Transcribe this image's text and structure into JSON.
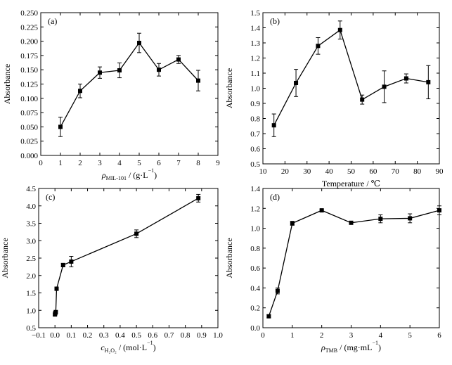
{
  "chart_data": [
    {
      "panel": "(a)",
      "type": "line",
      "xlabel": {
        "symbol": "ρ",
        "sub": "MIL-101",
        "unit": " / (g·L",
        "sup": "−1",
        "close": ")"
      },
      "ylabel": "Absorbance",
      "xlim": [
        0,
        9
      ],
      "ylim": [
        0,
        0.25
      ],
      "xticks": [
        0,
        1,
        2,
        3,
        4,
        5,
        6,
        7,
        8,
        9
      ],
      "xtick_labels": [
        "0",
        "1",
        "2",
        "3",
        "4",
        "5",
        "6",
        "7",
        "8",
        "9"
      ],
      "yticks": [
        0,
        0.025,
        0.05,
        0.075,
        0.1,
        0.125,
        0.15,
        0.175,
        0.2,
        0.225,
        0.25
      ],
      "ytick_labels": [
        "0.000",
        "0.025",
        "0.050",
        "0.075",
        "0.100",
        "0.125",
        "0.150",
        "0.175",
        "0.200",
        "0.225",
        "0.250"
      ],
      "series": [
        {
          "x": [
            1,
            2,
            3,
            4,
            5,
            6,
            7,
            8
          ],
          "y": [
            0.05,
            0.113,
            0.145,
            0.149,
            0.197,
            0.15,
            0.168,
            0.131
          ],
          "err": [
            0.017,
            0.012,
            0.01,
            0.013,
            0.017,
            0.011,
            0.007,
            0.018
          ]
        }
      ]
    },
    {
      "panel": "(b)",
      "type": "line",
      "xlabel": {
        "symbol": "",
        "sub": "",
        "unit": "Temperature / ℃",
        "sup": "",
        "close": ""
      },
      "ylabel": "Absorbance",
      "xlim": [
        10,
        90
      ],
      "ylim": [
        0.5,
        1.5
      ],
      "xticks": [
        10,
        20,
        30,
        40,
        50,
        60,
        70,
        80,
        90
      ],
      "xtick_labels": [
        "10",
        "20",
        "30",
        "40",
        "50",
        "60",
        "70",
        "80",
        "90"
      ],
      "yticks": [
        0.5,
        0.6,
        0.7,
        0.8,
        0.9,
        1.0,
        1.1,
        1.2,
        1.3,
        1.4,
        1.5
      ],
      "ytick_labels": [
        "0.5",
        "0.6",
        "0.7",
        "0.8",
        "0.9",
        "1.0",
        "1.1",
        "1.2",
        "1.3",
        "1.4",
        "1.5"
      ],
      "series": [
        {
          "x": [
            15,
            25,
            35,
            45,
            55,
            65,
            75,
            85
          ],
          "y": [
            0.755,
            1.035,
            1.28,
            1.385,
            0.925,
            1.01,
            1.065,
            1.04
          ],
          "err": [
            0.075,
            0.09,
            0.055,
            0.06,
            0.03,
            0.105,
            0.03,
            0.11
          ]
        }
      ]
    },
    {
      "panel": "(c)",
      "type": "line",
      "xlabel": {
        "symbol": "c",
        "sub": "H₂O₂",
        "unit": " / (mol·L",
        "sup": "−1",
        "close": ")"
      },
      "ylabel": "Absorbance",
      "xlim": [
        -0.1,
        1.0
      ],
      "ylim": [
        0.5,
        4.5
      ],
      "xticks": [
        -0.1,
        0,
        0.1,
        0.2,
        0.3,
        0.4,
        0.5,
        0.6,
        0.7,
        0.8,
        0.9,
        1.0
      ],
      "xtick_labels": [
        "−0.1",
        "0.0",
        "0.1",
        "0.2",
        "0.3",
        "0.4",
        "0.5",
        "0.6",
        "0.7",
        "0.8",
        "0.9",
        "1.0"
      ],
      "yticks": [
        0.5,
        1.0,
        1.5,
        2.0,
        2.5,
        3.0,
        3.5,
        4.0,
        4.5
      ],
      "ytick_labels": [
        "0.5",
        "1.0",
        "1.5",
        "2.0",
        "2.5",
        "3.0",
        "3.5",
        "4.0",
        "4.5"
      ],
      "series": [
        {
          "x": [
            0.0,
            0.002,
            0.005,
            0.01,
            0.05,
            0.1,
            0.5,
            0.88
          ],
          "y": [
            0.88,
            0.92,
            0.95,
            1.62,
            2.3,
            2.4,
            3.2,
            4.22
          ],
          "err": [
            0.03,
            0.03,
            0.03,
            0.05,
            0.05,
            0.15,
            0.11,
            0.11
          ]
        }
      ]
    },
    {
      "panel": "(d)",
      "type": "line",
      "xlabel": {
        "symbol": "ρ",
        "sub": "TMB",
        "unit": " / (mg·mL",
        "sup": "−1",
        "close": ")"
      },
      "ylabel": "Absorbance",
      "xlim": [
        0,
        6
      ],
      "ylim": [
        0,
        1.4
      ],
      "xticks": [
        0,
        1,
        2,
        3,
        4,
        5,
        6
      ],
      "xtick_labels": [
        "0",
        "1",
        "2",
        "3",
        "4",
        "5",
        "6"
      ],
      "yticks": [
        0,
        0.2,
        0.4,
        0.6,
        0.8,
        1.0,
        1.2,
        1.4
      ],
      "ytick_labels": [
        "0.0",
        "0.2",
        "0.4",
        "0.6",
        "0.8",
        "1.0",
        "1.2",
        "1.4"
      ],
      "series": [
        {
          "x": [
            0.2,
            0.5,
            1.0,
            2.0,
            3.0,
            4.0,
            5.0,
            6.0
          ],
          "y": [
            0.115,
            0.37,
            1.05,
            1.18,
            1.055,
            1.095,
            1.1,
            1.18
          ],
          "err": [
            0.015,
            0.03,
            0.02,
            0.01,
            0.01,
            0.04,
            0.045,
            0.045
          ]
        }
      ]
    }
  ]
}
